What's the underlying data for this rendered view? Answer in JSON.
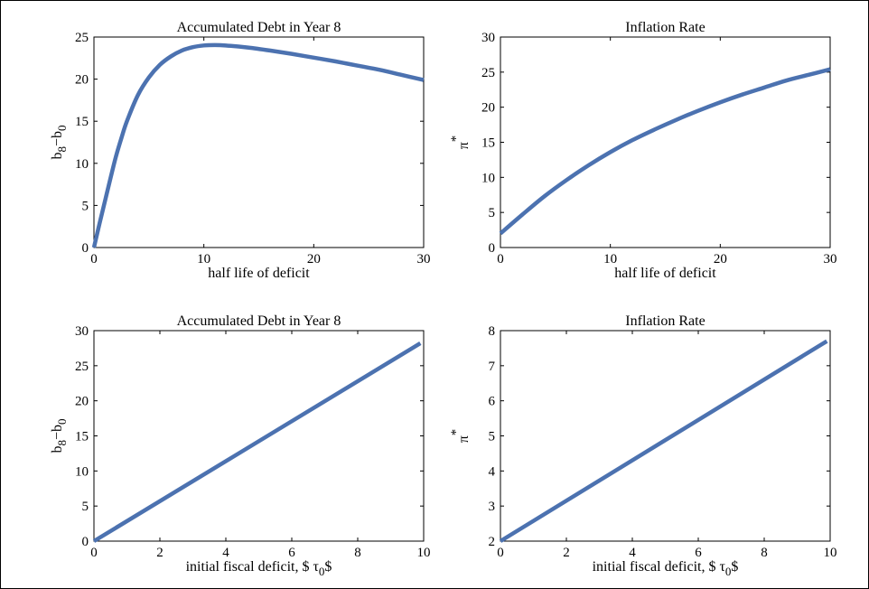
{
  "chart_data": [
    {
      "type": "line",
      "title": "Accumulated Debt in Year 8",
      "xlabel": "half life of deficit",
      "ylabel": {
        "base": "b",
        "sub1": "8",
        "dash": "−",
        "base2": "b",
        "sub2": "0"
      },
      "xlim": [
        0,
        30
      ],
      "ylim": [
        0,
        25
      ],
      "xticks": [
        0,
        10,
        20,
        30
      ],
      "yticks": [
        0,
        5,
        10,
        15,
        20,
        25
      ],
      "line_color": "#4c72b0",
      "series": [
        {
          "x": [
            0,
            0.5,
            1,
            1.5,
            2,
            2.5,
            3,
            4,
            5,
            6,
            7,
            8,
            9,
            10,
            11,
            12,
            14,
            16,
            18,
            20,
            22,
            24,
            26,
            28,
            30
          ],
          "values": [
            0,
            2.8,
            5.5,
            8.2,
            10.8,
            13,
            15,
            18.1,
            20.2,
            21.7,
            22.7,
            23.4,
            23.8,
            24,
            24.05,
            24,
            23.75,
            23.4,
            23,
            22.55,
            22.1,
            21.6,
            21.1,
            20.5,
            19.9
          ]
        }
      ]
    },
    {
      "type": "line",
      "title": "Inflation Rate",
      "xlabel": "half life of deficit",
      "ylabel": {
        "base": "π",
        "sup": "*"
      },
      "xlim": [
        0,
        30
      ],
      "ylim": [
        0,
        30
      ],
      "xticks": [
        0,
        10,
        20,
        30
      ],
      "yticks": [
        0,
        5,
        10,
        15,
        20,
        25,
        30
      ],
      "line_color": "#4c72b0",
      "series": [
        {
          "x": [
            0,
            2,
            4,
            6,
            8,
            10,
            12,
            14,
            16,
            18,
            20,
            22,
            24,
            26,
            28,
            30
          ],
          "values": [
            2,
            4.7,
            7.3,
            9.6,
            11.7,
            13.6,
            15.3,
            16.8,
            18.2,
            19.5,
            20.7,
            21.8,
            22.8,
            23.8,
            24.6,
            25.4
          ]
        }
      ]
    },
    {
      "type": "line",
      "title": "Accumulated Debt in Year 8",
      "xlabel": "initial fiscal deficit, $ τ",
      "xlabel_sub": "0",
      "xlabel_end": "$",
      "ylabel": {
        "base": "b",
        "sub1": "8",
        "dash": "−",
        "base2": "b",
        "sub2": "0"
      },
      "xlim": [
        0,
        10
      ],
      "ylim": [
        0,
        30
      ],
      "xticks": [
        0,
        2,
        4,
        6,
        8,
        10
      ],
      "yticks": [
        0,
        5,
        10,
        15,
        20,
        25,
        30
      ],
      "line_color": "#4c72b0",
      "series": [
        {
          "x": [
            0,
            9.9
          ],
          "values": [
            0,
            28.2
          ]
        }
      ]
    },
    {
      "type": "line",
      "title": "Inflation Rate",
      "xlabel": "initial fiscal deficit, $ τ",
      "xlabel_sub": "0",
      "xlabel_end": "$",
      "ylabel": {
        "base": "π",
        "sup": "*"
      },
      "xlim": [
        0,
        10
      ],
      "ylim": [
        2,
        8
      ],
      "xticks": [
        0,
        2,
        4,
        6,
        8,
        10
      ],
      "yticks": [
        2,
        3,
        4,
        5,
        6,
        7,
        8
      ],
      "line_color": "#4c72b0",
      "series": [
        {
          "x": [
            0,
            9.9
          ],
          "values": [
            2,
            7.7
          ]
        }
      ]
    }
  ]
}
